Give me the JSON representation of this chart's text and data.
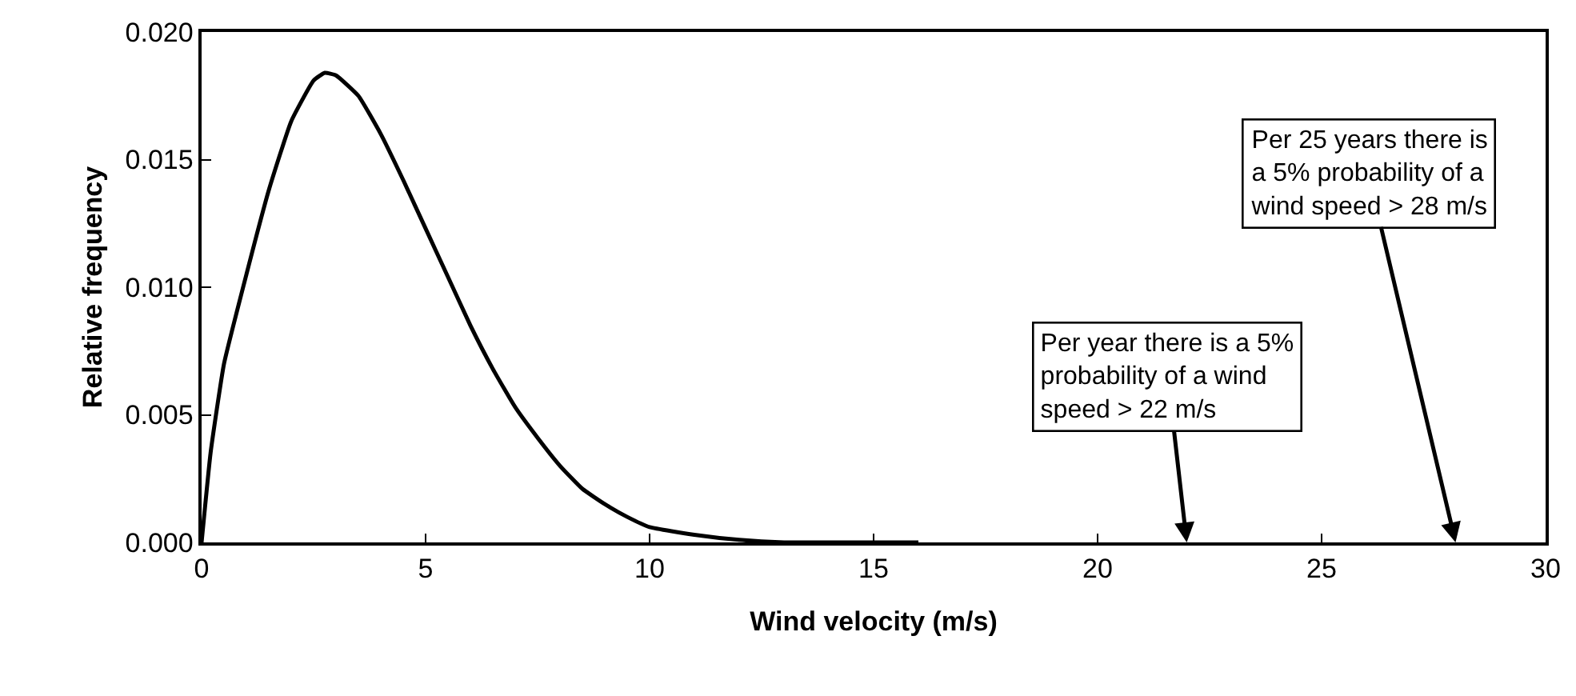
{
  "chart_data": {
    "type": "line",
    "xlabel": "Wind velocity (m/s)",
    "ylabel": "Relative frequency",
    "x": [
      0,
      0.2,
      0.5,
      1,
      1.5,
      2,
      2.5,
      2.75,
      3,
      3.5,
      4,
      4.5,
      5,
      5.5,
      6,
      6.5,
      7,
      7.5,
      8,
      8.5,
      9,
      9.5,
      10,
      11,
      12,
      13,
      14,
      16
    ],
    "series": [
      {
        "color": "#000000",
        "values": [
          0,
          0.0035,
          0.007,
          0.0105,
          0.0138,
          0.0165,
          0.0181,
          0.0184,
          0.0183,
          0.0175,
          0.016,
          0.0142,
          0.0123,
          0.0104,
          0.0085,
          0.0068,
          0.0053,
          0.0041,
          0.003,
          0.0021,
          0.0015,
          0.001,
          0.0006,
          0.0003,
          0.0001,
          0,
          0,
          0
        ]
      }
    ],
    "xlim": [
      0,
      30
    ],
    "xticks": [
      0,
      5,
      10,
      15,
      20,
      25,
      30
    ],
    "ylim": [
      0,
      0.02
    ],
    "yticks": [
      {
        "value": 0,
        "label": "0.000"
      },
      {
        "value": 0.005,
        "label": "0.005"
      },
      {
        "value": 0.01,
        "label": "0.010"
      },
      {
        "value": 0.015,
        "label": "0.015"
      },
      {
        "value": 0.02,
        "label": "0.020"
      }
    ],
    "grid": false,
    "marker": "none",
    "line_style": "solid",
    "annotations": [
      "Per year there is a 5% probability of a wind speed > 22 m/s",
      "Per 25 years there is a 5% probability of a wind speed > 28 m/s"
    ]
  }
}
